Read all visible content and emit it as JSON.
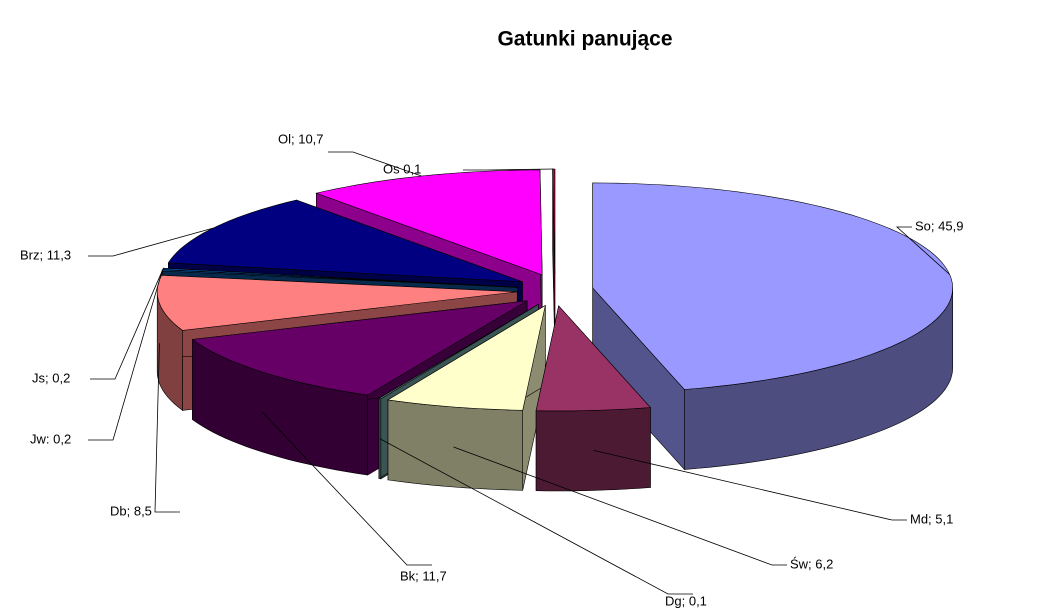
{
  "chart_data": {
    "type": "pie3d",
    "title": "Gatunki panujące",
    "values": [
      45.9,
      5.1,
      6.2,
      0.1,
      11.7,
      8.5,
      0.2,
      0.2,
      11.3,
      10.7,
      0.1
    ],
    "value_labels": [
      "So; 45,9",
      "Md;  5,1",
      "Św;  6,2",
      "Dg;  0,1",
      "Bk;  11,7",
      "Db;  8,5",
      "Jw: 0,2",
      "Js;  0,2",
      "Brz;  11,3",
      "Ol;  10,7",
      "Os  0,1"
    ],
    "colors": [
      "#9999ff",
      "#993366",
      "#ffffcc",
      "#6b9a9a",
      "#660066",
      "#ff8080",
      "#0a4a8a",
      "#0066cc",
      "#000080",
      "#ff00ff",
      "#c0004a"
    ]
  }
}
